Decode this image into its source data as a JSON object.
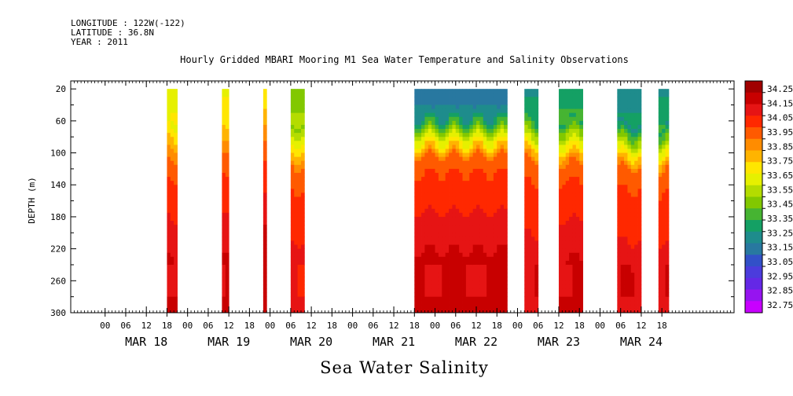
{
  "header": {
    "longitude": "LONGITUDE : 122W(-122)",
    "latitude": "LATITUDE : 36.8N",
    "year": "YEAR : 2011"
  },
  "footer_label": "Sea Water Salinity",
  "chart_data": {
    "type": "heatmap",
    "title": "Hourly Gridded MBARI Mooring M1 Sea Water Temperature and Salinity Observations",
    "xlabel": "",
    "ylabel": "DEPTH (m)",
    "y_ticks": [
      20,
      60,
      100,
      140,
      180,
      220,
      260,
      300
    ],
    "y_range": [
      10,
      300
    ],
    "x_range_hours": [
      -22,
      171
    ],
    "x_hour_tick_labels": [
      "00",
      "06",
      "12",
      "18",
      "00",
      "06",
      "12",
      "18",
      "00",
      "06",
      "12",
      "18",
      "00",
      "06",
      "12",
      "18",
      "00",
      "06",
      "12",
      "18",
      "00",
      "06",
      "12",
      "18",
      "00",
      "06",
      "12",
      "18"
    ],
    "x_day_labels": [
      "MAR 18",
      "MAR 19",
      "MAR 20",
      "MAR 21",
      "MAR 22",
      "MAR 23",
      "MAR 24"
    ],
    "colorbar_levels": [
      "34.25",
      "34.15",
      "34.05",
      "33.95",
      "33.85",
      "33.75",
      "33.65",
      "33.55",
      "33.45",
      "33.35",
      "33.25",
      "33.15",
      "33.05",
      "32.95",
      "32.85",
      "32.75"
    ],
    "colorbar_colors": [
      "#a00000",
      "#c80000",
      "#e61414",
      "#ff2800",
      "#ff5a00",
      "#ff8c00",
      "#ffb400",
      "#ffe600",
      "#e6f000",
      "#b4dc00",
      "#82c800",
      "#46b432",
      "#14a064",
      "#1e8c8c",
      "#2878a0",
      "#3250c8",
      "#4b3cdc",
      "#6428e6",
      "#9614f0",
      "#c800ff"
    ],
    "data_blocks": [
      {
        "start_h": 6,
        "end_h": 9,
        "surface": 33.6,
        "mixed_depth": 55,
        "deep": 34.15
      },
      {
        "start_h": 22,
        "end_h": 24,
        "surface": 33.65,
        "mixed_depth": 40,
        "deep": 34.15
      },
      {
        "start_h": 34,
        "end_h": 35,
        "surface": 33.7,
        "mixed_depth": 40,
        "deep": 34.2
      },
      {
        "start_h": 42,
        "end_h": 46,
        "surface": 33.45,
        "mixed_depth": 60,
        "deep": 34.1
      },
      {
        "start_h": 78,
        "end_h": 105,
        "surface": 33.15,
        "mixed_depth": 45,
        "deep": 34.15
      },
      {
        "start_h": 110,
        "end_h": 114,
        "surface": 33.25,
        "mixed_depth": 50,
        "deep": 34.1
      },
      {
        "start_h": 120,
        "end_h": 127,
        "surface": 33.3,
        "mixed_depth": 55,
        "deep": 34.15
      },
      {
        "start_h": 137,
        "end_h": 144,
        "surface": 33.2,
        "mixed_depth": 60,
        "deep": 34.1
      },
      {
        "start_h": 149,
        "end_h": 152,
        "surface": 33.25,
        "mixed_depth": 65,
        "deep": 34.1
      }
    ]
  }
}
